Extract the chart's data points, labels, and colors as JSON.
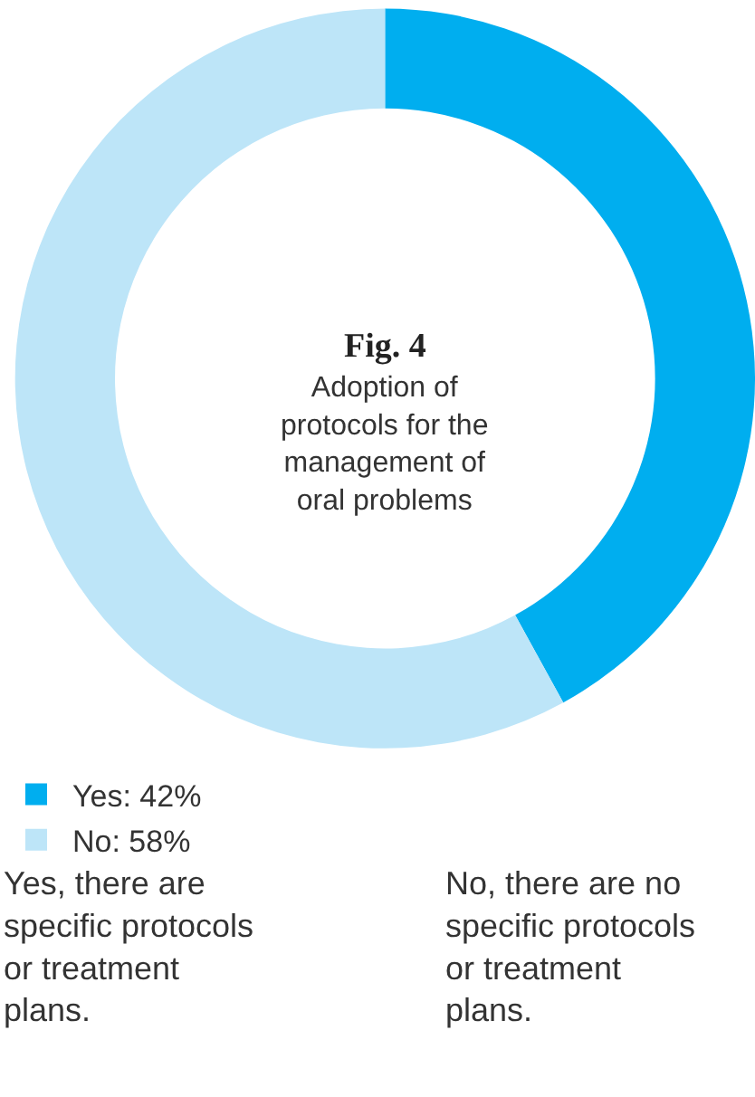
{
  "chart_data": {
    "type": "donut",
    "title": "Fig. 4",
    "subtitle": "Adoption of protocols for the management of oral problems",
    "categories": [
      "Yes: 42%",
      "No: 58%"
    ],
    "values": [
      42,
      58
    ],
    "colors": [
      "#00aeef",
      "#bde5f8"
    ],
    "legend": "bottom",
    "annotations": [
      "Yes, there are specific protocols or treatment plans.",
      "No, there are no specific protocols or treatment plans."
    ]
  }
}
